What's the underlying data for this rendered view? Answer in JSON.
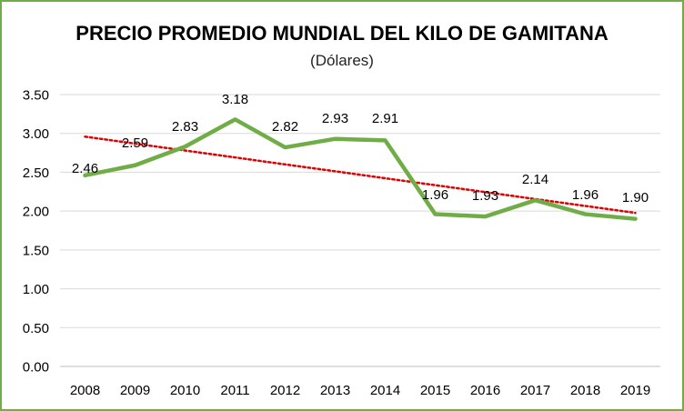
{
  "chart_data": {
    "type": "line",
    "title": "PRECIO PROMEDIO MUNDIAL DEL KILO DE GAMITANA",
    "subtitle": "(Dólares)",
    "xlabel": "",
    "ylabel": "",
    "categories": [
      "2008",
      "2009",
      "2010",
      "2011",
      "2012",
      "2013",
      "2014",
      "2015",
      "2016",
      "2017",
      "2018",
      "2019"
    ],
    "series": [
      {
        "values": [
          2.46,
          2.59,
          2.83,
          3.18,
          2.82,
          2.93,
          2.91,
          1.96,
          1.93,
          2.14,
          1.96,
          1.9
        ],
        "labels": [
          "2.46",
          "2.59",
          "2.83",
          "3.18",
          "2.82",
          "2.93",
          "2.91",
          "1.96",
          "1.93",
          "2.14",
          "1.96",
          "1.90"
        ],
        "color": "#70ad47",
        "trendline": {
          "type": "linear",
          "color": "#e00000",
          "style": "dotted"
        }
      }
    ],
    "ylim": [
      0,
      3.5
    ],
    "yticks": [
      "0.00",
      "0.50",
      "1.00",
      "1.50",
      "2.00",
      "2.50",
      "3.00",
      "3.50"
    ],
    "grid": true,
    "legend": "none"
  }
}
